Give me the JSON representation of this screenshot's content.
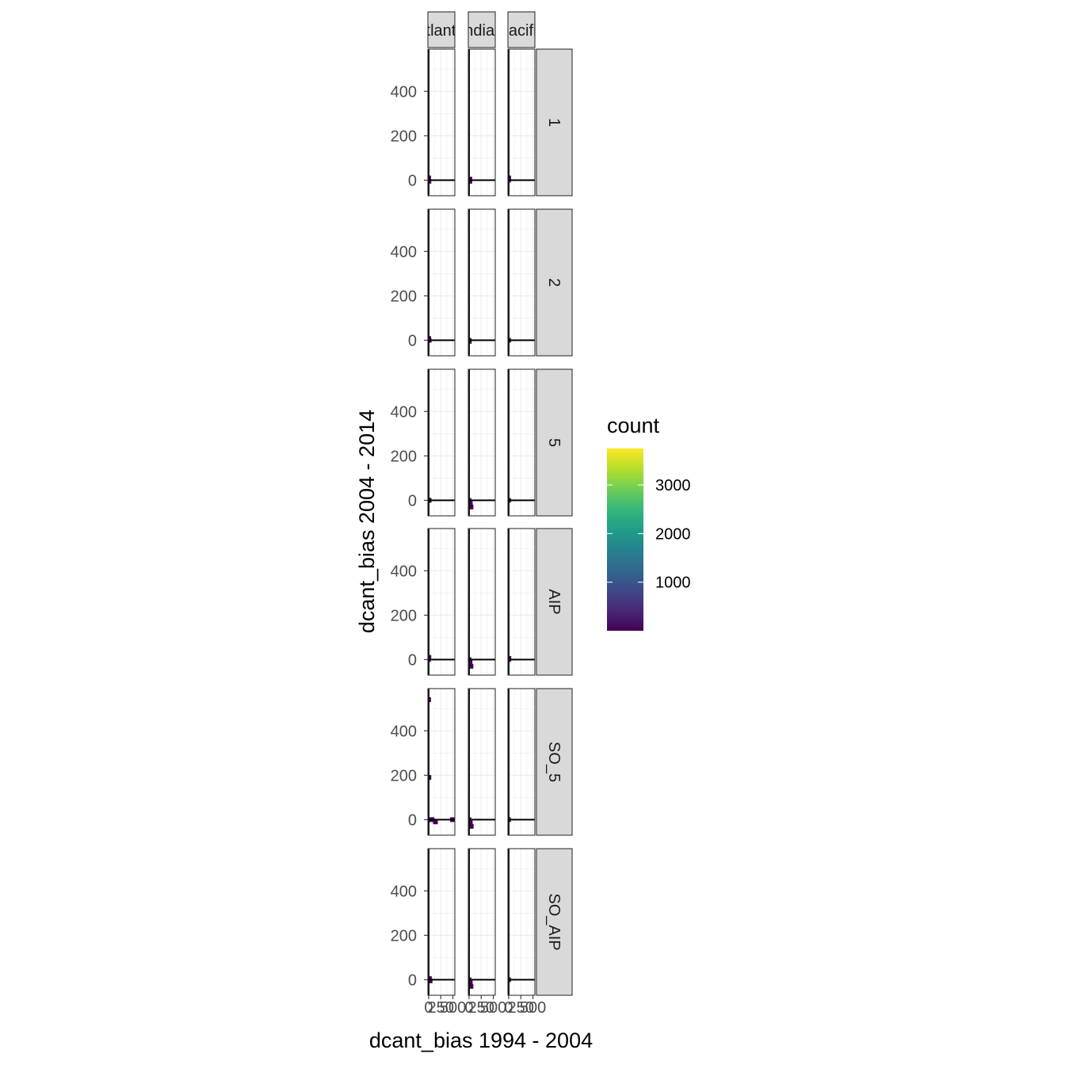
{
  "chart_data": {
    "type": "heatmap",
    "xlabel": "dcant_bias 1994 - 2004",
    "ylabel": "dcant_bias 2004 - 2014",
    "facet_cols": [
      "Atlantic",
      "Indian",
      "Pacific"
    ],
    "facet_rows": [
      "1",
      "2",
      "5",
      "AIP",
      "SO_5",
      "SO_AIP"
    ],
    "x_ticks": [
      0,
      250,
      500
    ],
    "x_tick_labels": [
      "0",
      "250",
      "500"
    ],
    "y_ticks": [
      0,
      200,
      400
    ],
    "y_tick_labels": [
      "0",
      "200",
      "400"
    ],
    "xlim": [
      -15,
      540
    ],
    "ylim": [
      -70,
      590
    ],
    "reference_lines": {
      "x": 0,
      "y": 0
    },
    "grid": true,
    "legend": {
      "title": "count",
      "position": "right",
      "range": [
        1,
        3750
      ],
      "ticks": [
        1000,
        2000,
        3000
      ],
      "tick_labels": [
        "1000",
        "2000",
        "3000"
      ],
      "colors": [
        "#440154",
        "#482878",
        "#3e4989",
        "#31688e",
        "#26828e",
        "#1f9e89",
        "#35b779",
        "#6ece58",
        "#b5de2b",
        "#fde725"
      ]
    },
    "panels": [
      {
        "row": "1",
        "col": "Atlantic",
        "bins": [
          [
            0,
            0,
            400
          ],
          [
            0,
            10,
            150
          ],
          [
            5,
            -5,
            120
          ]
        ]
      },
      {
        "row": "1",
        "col": "Indian",
        "bins": [
          [
            0,
            0,
            500
          ],
          [
            15,
            -5,
            200
          ],
          [
            15,
            5,
            150
          ]
        ]
      },
      {
        "row": "1",
        "col": "Pacific",
        "bins": [
          [
            0,
            0,
            600
          ],
          [
            0,
            10,
            100
          ]
        ]
      },
      {
        "row": "2",
        "col": "Atlantic",
        "bins": [
          [
            0,
            0,
            400
          ],
          [
            10,
            0,
            180
          ],
          [
            0,
            8,
            120
          ]
        ]
      },
      {
        "row": "2",
        "col": "Indian",
        "bins": [
          [
            0,
            0,
            500
          ],
          [
            5,
            -5,
            120
          ]
        ]
      },
      {
        "row": "2",
        "col": "Pacific",
        "bins": [
          [
            0,
            0,
            600
          ]
        ]
      },
      {
        "row": "5",
        "col": "Atlantic",
        "bins": [
          [
            0,
            0,
            300
          ],
          [
            10,
            0,
            120
          ]
        ]
      },
      {
        "row": "5",
        "col": "Indian",
        "bins": [
          [
            0,
            0,
            300
          ],
          [
            25,
            -15,
            120
          ],
          [
            40,
            -30,
            80
          ]
        ]
      },
      {
        "row": "5",
        "col": "Pacific",
        "bins": [
          [
            0,
            0,
            500
          ]
        ]
      },
      {
        "row": "AIP",
        "col": "Atlantic",
        "bins": [
          [
            0,
            0,
            400
          ],
          [
            5,
            10,
            150
          ]
        ]
      },
      {
        "row": "AIP",
        "col": "Indian",
        "bins": [
          [
            0,
            0,
            300
          ],
          [
            20,
            -10,
            120
          ],
          [
            40,
            -30,
            80
          ]
        ]
      },
      {
        "row": "AIP",
        "col": "Pacific",
        "bins": [
          [
            0,
            0,
            500
          ],
          [
            5,
            5,
            100
          ]
        ]
      },
      {
        "row": "SO_5",
        "col": "Atlantic",
        "bins": [
          [
            0,
            0,
            300
          ],
          [
            5,
            190,
            60
          ],
          [
            0,
            540,
            40
          ],
          [
            70,
            0,
            40
          ],
          [
            140,
            -10,
            30
          ],
          [
            490,
            0,
            30
          ]
        ]
      },
      {
        "row": "SO_5",
        "col": "Indian",
        "bins": [
          [
            0,
            0,
            300
          ],
          [
            25,
            -15,
            120
          ],
          [
            45,
            -30,
            80
          ]
        ]
      },
      {
        "row": "SO_5",
        "col": "Pacific",
        "bins": [
          [
            0,
            0,
            500
          ]
        ]
      },
      {
        "row": "SO_AIP",
        "col": "Atlantic",
        "bins": [
          [
            0,
            0,
            300
          ],
          [
            30,
            -5,
            150
          ],
          [
            15,
            5,
            100
          ]
        ]
      },
      {
        "row": "SO_AIP",
        "col": "Indian",
        "bins": [
          [
            0,
            0,
            300
          ],
          [
            25,
            -15,
            120
          ],
          [
            40,
            -30,
            80
          ]
        ]
      },
      {
        "row": "SO_AIP",
        "col": "Pacific",
        "bins": [
          [
            0,
            0,
            500
          ]
        ]
      }
    ]
  }
}
